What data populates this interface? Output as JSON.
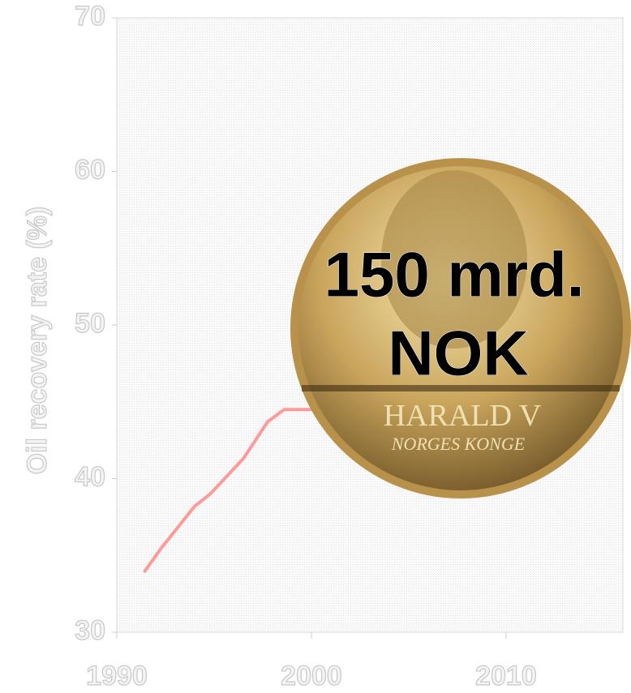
{
  "chart_data": {
    "type": "line",
    "y_label": "Oil recovery rate (%)",
    "x": [
      1991.4,
      1992.3,
      1994,
      1994.8,
      1996.5,
      1997.75,
      1998.6,
      2000
    ],
    "series": [
      {
        "name": "Oil recovery rate",
        "color": "#ff9a9a",
        "values": [
          33.9,
          35.5,
          38.2,
          39.0,
          41.3,
          43.7,
          44.5,
          44.5
        ]
      }
    ],
    "xlim": [
      1990,
      2016
    ],
    "xticks": [
      1990,
      2000,
      2010
    ],
    "ylim": [
      30,
      70
    ],
    "yticks": [
      30,
      40,
      50,
      60,
      70
    ],
    "annotation": [
      "150 mrd.",
      "NOK"
    ],
    "coin_text": [
      "HARALD V",
      "NORGES KONGE"
    ]
  }
}
